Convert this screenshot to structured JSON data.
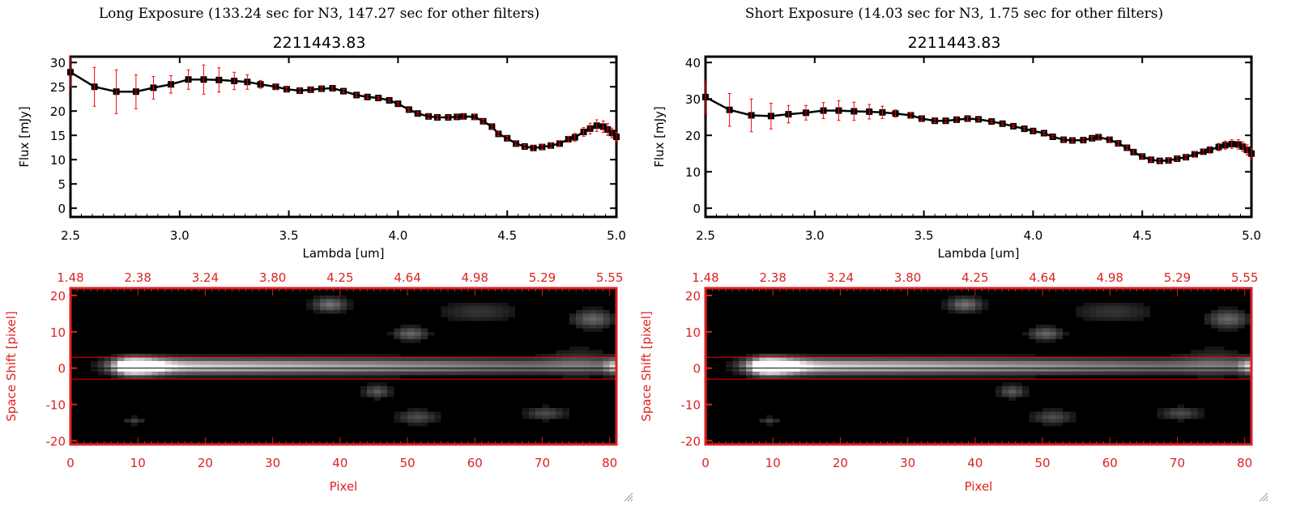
{
  "colors": {
    "axis": "#000000",
    "error_bar": "#ff0000",
    "image_axis": "#dd2222",
    "aperture_line": "#ff0000"
  },
  "chart_data": [
    {
      "type": "line",
      "title": "Long Exposure (133.24 sec for N3, 147.27 sec for other filters)",
      "subtitle": "2211443.83",
      "xlabel": "Lambda [um]",
      "ylabel": "Flux [mJy]",
      "xlim": [
        2.5,
        5.0
      ],
      "ylim": [
        -1.8,
        31.2
      ],
      "xticks": [
        "2.5",
        "3.0",
        "3.5",
        "4.0",
        "4.5",
        "5.0"
      ],
      "yticks": [
        "0",
        "5",
        "10",
        "15",
        "20",
        "25",
        "30"
      ],
      "x": [
        2.5,
        2.61,
        2.71,
        2.8,
        2.88,
        2.96,
        3.04,
        3.11,
        3.18,
        3.25,
        3.31,
        3.37,
        3.44,
        3.49,
        3.55,
        3.6,
        3.65,
        3.7,
        3.75,
        3.81,
        3.86,
        3.91,
        3.96,
        4.0,
        4.05,
        4.09,
        4.14,
        4.18,
        4.23,
        4.27,
        4.3,
        4.35,
        4.39,
        4.43,
        4.46,
        4.5,
        4.54,
        4.58,
        4.62,
        4.66,
        4.7,
        4.74,
        4.78,
        4.81,
        4.85,
        4.88,
        4.91,
        4.94,
        4.96,
        4.98,
        5.0
      ],
      "y": [
        28,
        25,
        24,
        24,
        24.8,
        25.5,
        26.5,
        26.5,
        26.4,
        26.2,
        26,
        25.5,
        25,
        24.5,
        24.2,
        24.4,
        24.6,
        24.7,
        24.1,
        23.3,
        22.9,
        22.7,
        22.2,
        21.5,
        20.3,
        19.5,
        18.9,
        18.7,
        18.7,
        18.8,
        18.9,
        18.8,
        17.9,
        16.8,
        15.3,
        14.4,
        13.3,
        12.7,
        12.4,
        12.6,
        12.9,
        13.3,
        14.2,
        14.6,
        15.7,
        16.4,
        17,
        16.8,
        16.2,
        15.5,
        14.7
      ],
      "yerr": [
        3,
        4,
        4.5,
        3.5,
        2.3,
        1.8,
        2,
        3,
        2.5,
        1.8,
        1.5,
        0.8,
        0.5,
        0.4,
        0.4,
        0.4,
        0.4,
        0.4,
        0.3,
        0.3,
        0.3,
        0.3,
        0.3,
        0.3,
        0.3,
        0.3,
        0.4,
        0.4,
        0.4,
        0.4,
        0.5,
        0.5,
        0.4,
        0.4,
        0.4,
        0.4,
        0.4,
        0.4,
        0.5,
        0.5,
        0.5,
        0.6,
        0.6,
        0.8,
        0.9,
        1.1,
        1.2,
        1.2,
        1.2,
        1.0,
        1.0
      ]
    },
    {
      "type": "line",
      "title": "Short Exposure (14.03 sec for N3, 1.75 sec for other filters)",
      "subtitle": "2211443.83",
      "xlabel": "Lambda [um]",
      "ylabel": "Flux [mJy]",
      "xlim": [
        2.5,
        5.0
      ],
      "ylim": [
        -2.4,
        41.6
      ],
      "xticks": [
        "2.5",
        "3.0",
        "3.5",
        "4.0",
        "4.5",
        "5.0"
      ],
      "yticks": [
        "0",
        "10",
        "20",
        "30",
        "40"
      ],
      "x": [
        2.5,
        2.61,
        2.71,
        2.8,
        2.88,
        2.96,
        3.04,
        3.11,
        3.18,
        3.25,
        3.31,
        3.37,
        3.44,
        3.49,
        3.55,
        3.6,
        3.65,
        3.7,
        3.75,
        3.81,
        3.86,
        3.91,
        3.96,
        4.0,
        4.05,
        4.09,
        4.14,
        4.18,
        4.23,
        4.27,
        4.3,
        4.35,
        4.39,
        4.43,
        4.46,
        4.5,
        4.54,
        4.58,
        4.62,
        4.66,
        4.7,
        4.74,
        4.78,
        4.81,
        4.85,
        4.88,
        4.91,
        4.94,
        4.96,
        4.98,
        5.0
      ],
      "y": [
        30.5,
        27,
        25.5,
        25.3,
        25.8,
        26.2,
        26.8,
        26.8,
        26.6,
        26.5,
        26.3,
        26,
        25.5,
        24.6,
        24,
        24,
        24.3,
        24.6,
        24.4,
        23.8,
        23.2,
        22.5,
        21.8,
        21.2,
        20.6,
        19.6,
        18.8,
        18.6,
        18.7,
        19.2,
        19.5,
        18.8,
        17.8,
        16.6,
        15.4,
        14.2,
        13.3,
        13,
        13.1,
        13.6,
        14,
        14.8,
        15.5,
        16,
        16.8,
        17.3,
        17.6,
        17.5,
        16.9,
        16,
        15
      ],
      "yerr": [
        4.5,
        4.5,
        4.5,
        3.5,
        2.4,
        2,
        2.2,
        2.7,
        2.5,
        2,
        1.7,
        1,
        0.6,
        0.5,
        0.5,
        0.5,
        0.5,
        0.5,
        0.4,
        0.4,
        0.4,
        0.4,
        0.4,
        0.4,
        0.4,
        0.4,
        0.5,
        0.5,
        0.5,
        0.5,
        0.6,
        0.6,
        0.5,
        0.5,
        0.5,
        0.5,
        0.5,
        0.5,
        0.6,
        0.6,
        0.6,
        0.7,
        0.8,
        0.9,
        1.0,
        1.1,
        1.2,
        1.3,
        1.3,
        1.4,
        1.5
      ]
    },
    {
      "type": "heatmap",
      "xlabel": "Pixel",
      "ylabel": "Space Shift [pixel]",
      "xlim": [
        0,
        81
      ],
      "ylim": [
        -21,
        22
      ],
      "xticks": [
        "0",
        "10",
        "20",
        "30",
        "40",
        "50",
        "60",
        "70",
        "80"
      ],
      "yticks": [
        "-20",
        "-10",
        "0",
        "10",
        "20"
      ],
      "top_xticks": [
        "1.48",
        "2.38",
        "3.24",
        "3.80",
        "4.25",
        "4.64",
        "4.98",
        "5.29",
        "5.55"
      ],
      "aperture_lines": [
        3,
        -3
      ],
      "center_line": 0
    },
    {
      "type": "heatmap",
      "xlabel": "Pixel",
      "ylabel": "Space Shift [pixel]",
      "xlim": [
        0,
        81
      ],
      "ylim": [
        -21,
        22
      ],
      "xticks": [
        "0",
        "10",
        "20",
        "30",
        "40",
        "50",
        "60",
        "70",
        "80"
      ],
      "yticks": [
        "-20",
        "-10",
        "0",
        "10",
        "20"
      ],
      "top_xticks": [
        "1.48",
        "2.38",
        "3.24",
        "3.80",
        "4.25",
        "4.64",
        "4.98",
        "5.29",
        "5.55"
      ],
      "aperture_lines": [
        3,
        -3
      ],
      "center_line": 0
    }
  ]
}
